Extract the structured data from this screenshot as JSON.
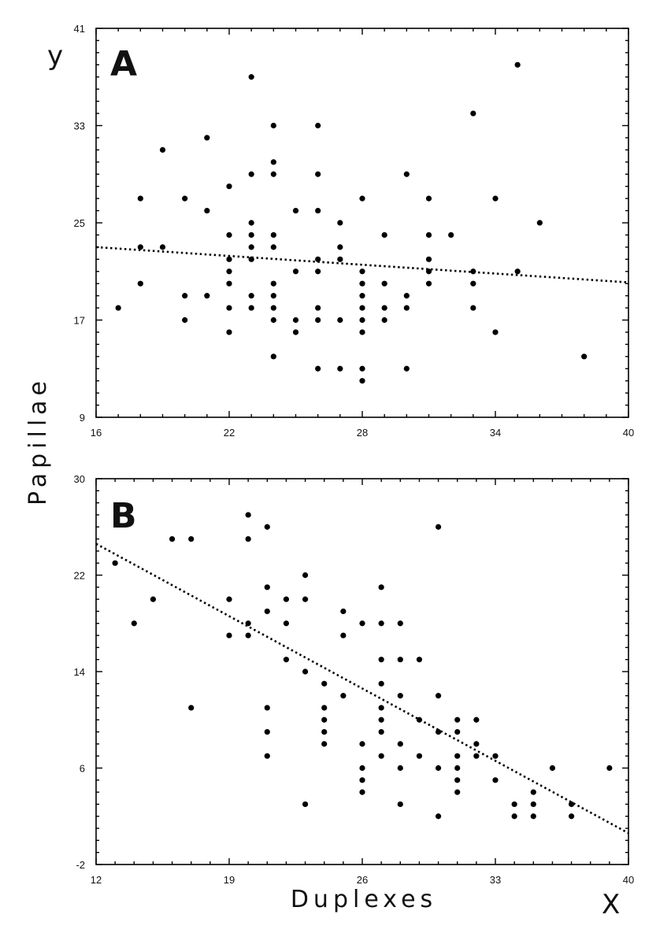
{
  "figure": {
    "y_axis_title": "Papillae",
    "x_axis_title": "Duplexes",
    "corner_y": "y",
    "corner_x": "X"
  },
  "chart_data": [
    {
      "type": "scatter",
      "panel_label": "A",
      "xlim": [
        16,
        40
      ],
      "ylim": [
        9,
        41
      ],
      "x_ticks": [
        "16",
        "22",
        "28",
        "34",
        "40"
      ],
      "y_ticks": [
        "41",
        "33",
        "25",
        "17",
        "9"
      ],
      "x_tick_values": [
        16,
        22,
        28,
        34,
        40
      ],
      "y_tick_values": [
        41,
        33,
        25,
        17,
        9
      ],
      "grid": false,
      "trendline": {
        "x": [
          16,
          40
        ],
        "y": [
          23.0,
          20.1
        ]
      },
      "points": [
        [
          17,
          18
        ],
        [
          18,
          27
        ],
        [
          18,
          23
        ],
        [
          18,
          20
        ],
        [
          19,
          31
        ],
        [
          19,
          23
        ],
        [
          20,
          27
        ],
        [
          20,
          19
        ],
        [
          20,
          17
        ],
        [
          21,
          32
        ],
        [
          21,
          26
        ],
        [
          21,
          19
        ],
        [
          22,
          28
        ],
        [
          22,
          24
        ],
        [
          22,
          22
        ],
        [
          22,
          21
        ],
        [
          22,
          20
        ],
        [
          22,
          18
        ],
        [
          22,
          16
        ],
        [
          23,
          37
        ],
        [
          23,
          29
        ],
        [
          23,
          25
        ],
        [
          23,
          24
        ],
        [
          23,
          23
        ],
        [
          23,
          22
        ],
        [
          23,
          19
        ],
        [
          23,
          18
        ],
        [
          24,
          33
        ],
        [
          24,
          30
        ],
        [
          24,
          29
        ],
        [
          24,
          24
        ],
        [
          24,
          23
        ],
        [
          24,
          20
        ],
        [
          24,
          19
        ],
        [
          24,
          18
        ],
        [
          24,
          17
        ],
        [
          24,
          14
        ],
        [
          25,
          26
        ],
        [
          25,
          21
        ],
        [
          25,
          17
        ],
        [
          25,
          16
        ],
        [
          26,
          33
        ],
        [
          26,
          29
        ],
        [
          26,
          26
        ],
        [
          26,
          22
        ],
        [
          26,
          21
        ],
        [
          26,
          18
        ],
        [
          26,
          17
        ],
        [
          26,
          13
        ],
        [
          27,
          25
        ],
        [
          27,
          23
        ],
        [
          27,
          22
        ],
        [
          27,
          17
        ],
        [
          27,
          13
        ],
        [
          28,
          27
        ],
        [
          28,
          21
        ],
        [
          28,
          20
        ],
        [
          28,
          19
        ],
        [
          28,
          18
        ],
        [
          28,
          17
        ],
        [
          28,
          16
        ],
        [
          28,
          13
        ],
        [
          28,
          12
        ],
        [
          29,
          24
        ],
        [
          29,
          20
        ],
        [
          29,
          18
        ],
        [
          29,
          17
        ],
        [
          30,
          29
        ],
        [
          30,
          19
        ],
        [
          30,
          18
        ],
        [
          30,
          13
        ],
        [
          31,
          27
        ],
        [
          31,
          24
        ],
        [
          31,
          22
        ],
        [
          31,
          21
        ],
        [
          31,
          20
        ],
        [
          32,
          24
        ],
        [
          33,
          34
        ],
        [
          33,
          21
        ],
        [
          33,
          20
        ],
        [
          33,
          18
        ],
        [
          34,
          27
        ],
        [
          34,
          16
        ],
        [
          35,
          38
        ],
        [
          35,
          21
        ],
        [
          36,
          25
        ],
        [
          38,
          14
        ]
      ]
    },
    {
      "type": "scatter",
      "panel_label": "B",
      "xlim": [
        12,
        40
      ],
      "ylim": [
        -2,
        30
      ],
      "x_ticks": [
        "12",
        "19",
        "26",
        "33",
        "40"
      ],
      "y_ticks": [
        "30",
        "22",
        "14",
        "6",
        "-2"
      ],
      "x_tick_values": [
        12,
        19,
        26,
        33,
        40
      ],
      "y_tick_values": [
        30,
        22,
        14,
        6,
        -2
      ],
      "grid": false,
      "trendline": {
        "x": [
          12,
          40
        ],
        "y": [
          24.6,
          0.6
        ]
      },
      "points": [
        [
          13,
          23
        ],
        [
          14,
          18
        ],
        [
          15,
          20
        ],
        [
          16,
          25
        ],
        [
          17,
          25
        ],
        [
          17,
          11
        ],
        [
          19,
          20
        ],
        [
          19,
          17
        ],
        [
          20,
          27
        ],
        [
          20,
          25
        ],
        [
          20,
          18
        ],
        [
          20,
          17
        ],
        [
          21,
          26
        ],
        [
          21,
          21
        ],
        [
          21,
          19
        ],
        [
          21,
          11
        ],
        [
          21,
          9
        ],
        [
          21,
          7
        ],
        [
          22,
          20
        ],
        [
          22,
          18
        ],
        [
          22,
          15
        ],
        [
          23,
          22
        ],
        [
          23,
          20
        ],
        [
          23,
          14
        ],
        [
          23,
          3
        ],
        [
          24,
          13
        ],
        [
          24,
          11
        ],
        [
          24,
          10
        ],
        [
          24,
          9
        ],
        [
          24,
          8
        ],
        [
          25,
          19
        ],
        [
          25,
          17
        ],
        [
          25,
          12
        ],
        [
          26,
          18
        ],
        [
          26,
          8
        ],
        [
          26,
          6
        ],
        [
          26,
          5
        ],
        [
          26,
          4
        ],
        [
          27,
          21
        ],
        [
          27,
          18
        ],
        [
          27,
          15
        ],
        [
          27,
          13
        ],
        [
          27,
          11
        ],
        [
          27,
          10
        ],
        [
          27,
          9
        ],
        [
          27,
          7
        ],
        [
          28,
          18
        ],
        [
          28,
          15
        ],
        [
          28,
          12
        ],
        [
          28,
          8
        ],
        [
          28,
          6
        ],
        [
          28,
          3
        ],
        [
          29,
          15
        ],
        [
          29,
          10
        ],
        [
          29,
          7
        ],
        [
          30,
          26
        ],
        [
          30,
          12
        ],
        [
          30,
          9
        ],
        [
          30,
          6
        ],
        [
          30,
          2
        ],
        [
          31,
          10
        ],
        [
          31,
          9
        ],
        [
          31,
          7
        ],
        [
          31,
          6
        ],
        [
          31,
          5
        ],
        [
          31,
          4
        ],
        [
          32,
          10
        ],
        [
          32,
          8
        ],
        [
          32,
          7
        ],
        [
          33,
          7
        ],
        [
          33,
          5
        ],
        [
          34,
          3
        ],
        [
          34,
          2
        ],
        [
          35,
          4
        ],
        [
          35,
          3
        ],
        [
          35,
          2
        ],
        [
          36,
          6
        ],
        [
          37,
          3
        ],
        [
          37,
          2
        ],
        [
          39,
          6
        ]
      ]
    }
  ]
}
